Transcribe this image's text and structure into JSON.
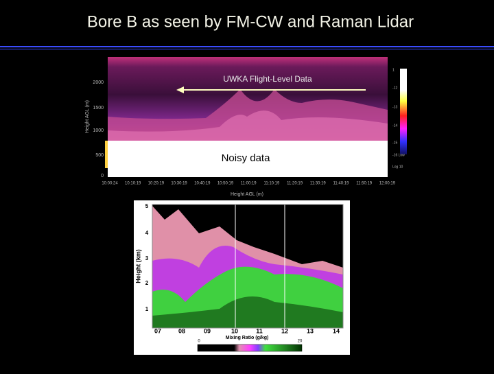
{
  "slide": {
    "title": "Bore B as seen by FM-CW and Raman Lidar"
  },
  "radar_panel": {
    "y_axis_label": "Height AGL (m)",
    "y_ticks": [
      "2000",
      "1500",
      "1000",
      "500",
      "0"
    ],
    "x_ticks": [
      "10:00:24",
      "10:10:19",
      "10:20:19",
      "10:30:19",
      "10:40:19",
      "10:50:19",
      "11:00:19",
      "11:10:19",
      "11:20:19",
      "11:30:19",
      "11:40:19",
      "11:50:19",
      "12:00:19"
    ],
    "x_axis_label": "Height AGL (m)",
    "flight_level_annotation": "UWKA Flight-Level Data",
    "noisy_annotation": "Noisy data",
    "colorbar_labels": [
      "1",
      "-12",
      "-13",
      "-14",
      "-15",
      "-16 Low",
      "Log 10"
    ]
  },
  "lidar_panel": {
    "y_axis_label": "Height (km)",
    "y_ticks": [
      "5",
      "4",
      "3",
      "2",
      "1"
    ],
    "x_ticks": [
      "07",
      "08",
      "09",
      "10",
      "11",
      "12",
      "13",
      "14"
    ],
    "x_axis_label": "Mixing Ratio (g/kg)",
    "colorbar_labels": [
      "0",
      "20"
    ]
  }
}
